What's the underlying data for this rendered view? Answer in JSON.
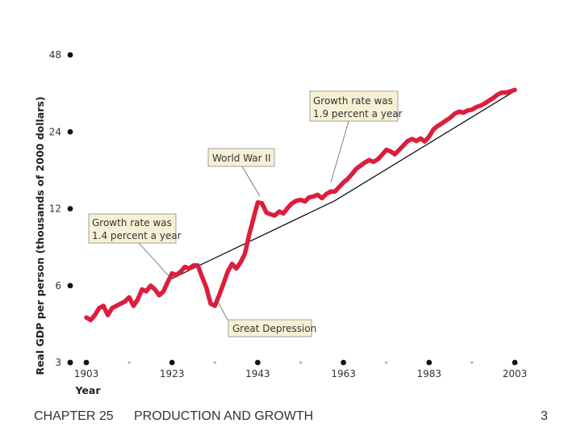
{
  "footer": {
    "chapter": "CHAPTER 25",
    "title": "PRODUCTION AND GROWTH",
    "page": "3"
  },
  "colors": {
    "series": "#dc1e3c",
    "trend": "#111111",
    "annotation_fill": "#f6f1d5",
    "axis_dot": "#111111",
    "minor_dot": "#bbbbbb"
  },
  "chart_data": {
    "type": "line",
    "xlabel": "Year",
    "ylabel": "Real GDP per person (thousands of 2000 dollars)",
    "y_scale": "log",
    "ylim": [
      3,
      48
    ],
    "xlim": [
      1903,
      2003
    ],
    "y_ticks": [
      3,
      6,
      12,
      24,
      48
    ],
    "x_ticks": [
      1903,
      1923,
      1943,
      1963,
      1983,
      2003
    ],
    "x_minor_ticks": [
      1913,
      1933,
      1953,
      1973,
      1993
    ],
    "series": [
      {
        "x": [
          1903,
          1904,
          1905,
          1906,
          1907,
          1908,
          1909,
          1910,
          1911,
          1912,
          1913,
          1914,
          1915,
          1916,
          1917,
          1918,
          1919,
          1920,
          1921,
          1922,
          1923,
          1924,
          1925,
          1926,
          1927,
          1928,
          1929,
          1930,
          1931,
          1932,
          1933,
          1934,
          1935,
          1936,
          1937,
          1938,
          1939,
          1940,
          1941,
          1942,
          1943,
          1944,
          1945,
          1946,
          1947,
          1948,
          1949,
          1950,
          1951,
          1952,
          1953,
          1954,
          1955,
          1956,
          1957,
          1958,
          1959,
          1960,
          1961,
          1962,
          1963,
          1964,
          1965,
          1966,
          1967,
          1968,
          1969,
          1970,
          1971,
          1972,
          1973,
          1974,
          1975,
          1976,
          1977,
          1978,
          1979,
          1980,
          1981,
          1982,
          1983,
          1984,
          1985,
          1986,
          1987,
          1988,
          1989,
          1990,
          1991,
          1992,
          1993,
          1994,
          1995,
          1996,
          1997,
          1998,
          1999,
          2000,
          2001,
          2002,
          2003
        ],
        "values": [
          4.5,
          4.4,
          4.6,
          4.9,
          5.0,
          4.6,
          4.9,
          5.0,
          5.1,
          5.2,
          5.4,
          5.0,
          5.3,
          5.8,
          5.7,
          6.0,
          5.8,
          5.5,
          5.7,
          6.2,
          6.7,
          6.6,
          6.8,
          7.1,
          7.0,
          7.2,
          7.2,
          6.5,
          5.9,
          5.1,
          5.0,
          5.5,
          6.1,
          6.8,
          7.3,
          7.0,
          7.4,
          8.0,
          9.5,
          11.0,
          12.7,
          12.6,
          11.6,
          11.4,
          11.3,
          11.7,
          11.5,
          12.1,
          12.6,
          12.9,
          13.0,
          12.8,
          13.3,
          13.4,
          13.6,
          13.2,
          13.7,
          14.0,
          14.0,
          14.6,
          15.2,
          15.7,
          16.4,
          17.2,
          17.7,
          18.2,
          18.6,
          18.3,
          18.7,
          19.5,
          20.4,
          20.1,
          19.6,
          20.4,
          21.2,
          22.1,
          22.5,
          22.1,
          22.6,
          22.0,
          23.0,
          24.5,
          25.3,
          25.9,
          26.6,
          27.3,
          28.3,
          28.8,
          28.5,
          29.1,
          29.3,
          30.0,
          30.4,
          31.0,
          31.8,
          32.6,
          33.6,
          34.2,
          34.2,
          34.6,
          35.0
        ]
      }
    ],
    "trend": {
      "x": [
        1923,
        1961,
        2003
      ],
      "values": [
        6.4,
        12.9,
        34.7
      ]
    },
    "annotations": [
      {
        "id": "growth-early",
        "lines": [
          "Growth rate was",
          "1.4 percent a year"
        ]
      },
      {
        "id": "world-war",
        "lines": [
          "World War II"
        ]
      },
      {
        "id": "growth-late",
        "lines": [
          "Growth rate was",
          "1.9 percent a year"
        ]
      },
      {
        "id": "depression",
        "lines": [
          "Great Depression"
        ]
      }
    ]
  }
}
